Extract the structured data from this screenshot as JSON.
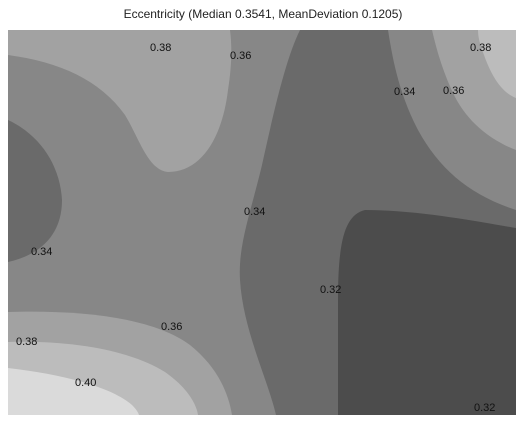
{
  "chart_data": {
    "type": "contour",
    "title": "Eccentricity (Median 0.3541, MeanDeviation 0.1205)",
    "levels": [
      0.32,
      0.34,
      0.36,
      0.38,
      0.4
    ],
    "contour_labels": [
      {
        "text": "0.38",
        "level": 0.38
      },
      {
        "text": "0.36",
        "level": 0.36
      },
      {
        "text": "0.38",
        "level": 0.38
      },
      {
        "text": "0.34",
        "level": 0.34
      },
      {
        "text": "0.36",
        "level": 0.36
      },
      {
        "text": "0.34",
        "level": 0.34
      },
      {
        "text": "0.34",
        "level": 0.34
      },
      {
        "text": "0.32",
        "level": 0.32
      },
      {
        "text": "0.36",
        "level": 0.36
      },
      {
        "text": "0.38",
        "level": 0.38
      },
      {
        "text": "0.40",
        "level": 0.4
      },
      {
        "text": "0.32",
        "level": 0.32
      }
    ],
    "fill_colors": {
      "below_0.32": "#4c4c4c",
      "0.32_0.34": "#6a6a6a",
      "0.34_0.36": "#878787",
      "0.36_0.38": "#a2a2a2",
      "0.38_0.40": "#bcbcbc",
      "above_0.40": "#dadada"
    },
    "axes_visible": false,
    "grid": false,
    "legend": "none"
  }
}
